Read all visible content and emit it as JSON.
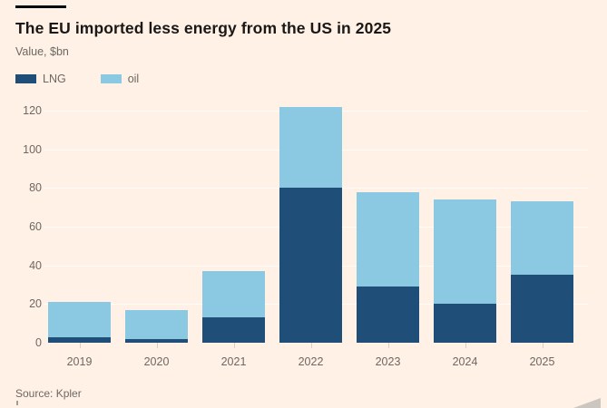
{
  "title": "The EU imported less energy from the US in 2025",
  "subtitle": "Value, $bn",
  "source": "Source: Kpler",
  "legend": {
    "items": [
      {
        "label": "LNG",
        "color": "#1f4e79"
      },
      {
        "label": "oil",
        "color": "#8bc9e3"
      }
    ]
  },
  "colors": {
    "background": "#fff1e5",
    "lng": "#1f4e79",
    "oil": "#8bc9e3",
    "title_text": "#1a1817",
    "muted_text": "#6e6862",
    "gridline": "rgba(255,255,255,0.75)"
  },
  "chart_data": {
    "type": "bar",
    "stacked": true,
    "categories": [
      "2019",
      "2020",
      "2021",
      "2022",
      "2023",
      "2024",
      "2025"
    ],
    "series": [
      {
        "name": "LNG",
        "color": "#1f4e79",
        "values": [
          3,
          2,
          13,
          80,
          29,
          20,
          35
        ]
      },
      {
        "name": "oil",
        "color": "#8bc9e3",
        "values": [
          18,
          15,
          24,
          42,
          49,
          54,
          38
        ]
      }
    ],
    "totals": [
      21,
      17,
      37,
      122,
      78,
      74,
      73
    ],
    "title": "The EU imported less energy from the US in 2025",
    "xlabel": "",
    "ylabel": "Value, $bn",
    "yticks": [
      0,
      20,
      40,
      60,
      80,
      100,
      120
    ],
    "ylim": [
      0,
      125
    ],
    "grid": true,
    "legend_position": "top-left"
  }
}
